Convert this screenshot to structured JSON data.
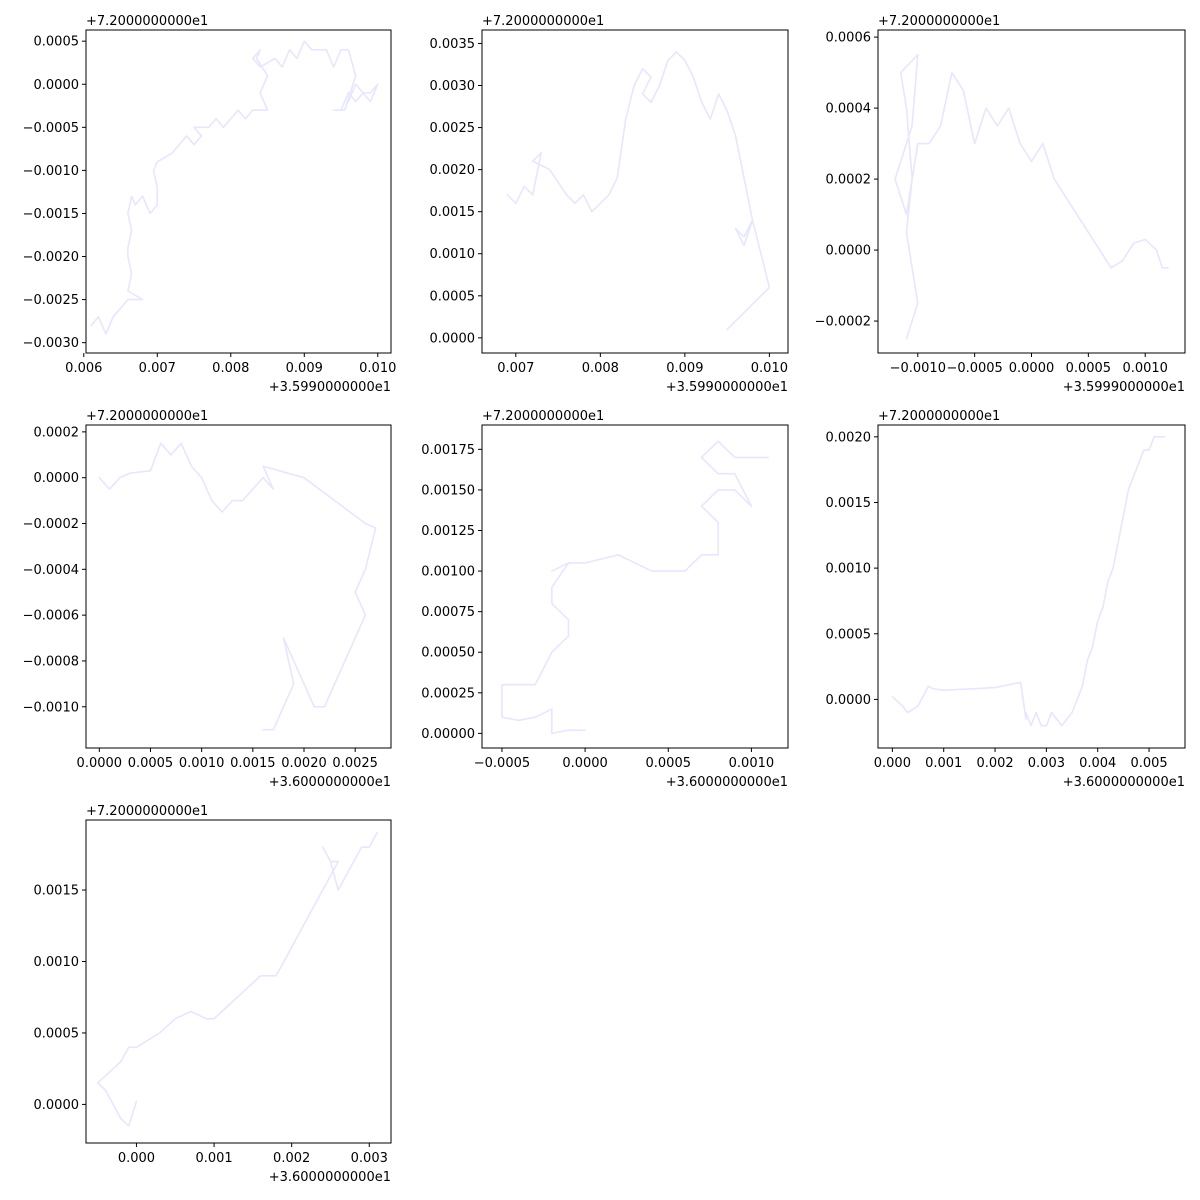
{
  "figure": {
    "background": "#ffffff",
    "line_color": "#e6e6ff"
  },
  "chart_data": [
    {
      "type": "line",
      "offset_y_label": "+7.2000000000e1",
      "offset_x_label": "+3.5990000000e1",
      "xlim": [
        0.00603,
        0.01018
      ],
      "ylim": [
        -0.00312,
        0.00063
      ],
      "x_ticks": [
        0.006,
        0.007,
        0.008,
        0.009,
        0.01
      ],
      "x_tick_labels": [
        "0.006",
        "0.007",
        "0.008",
        "0.009",
        "0.010"
      ],
      "y_ticks": [
        0.0005,
        0.0,
        -0.0005,
        -0.001,
        -0.0015,
        -0.002,
        -0.0025,
        -0.003
      ],
      "y_tick_labels": [
        "0.0005",
        "0.0000",
        "−0.0005",
        "−0.0010",
        "−0.0015",
        "−0.0020",
        "−0.0025",
        "−0.0030"
      ],
      "series": [
        {
          "x": [
            0.0061,
            0.0062,
            0.0063,
            0.0064,
            0.0066,
            0.0067,
            0.0068,
            0.0066,
            0.00665,
            0.0066,
            0.0066,
            0.00665,
            0.0066,
            0.00665,
            0.0067,
            0.0068,
            0.0069,
            0.007,
            0.007,
            0.00695,
            0.007,
            0.0072,
            0.0073,
            0.0074,
            0.0075,
            0.0076,
            0.0075,
            0.0077,
            0.0078,
            0.0079,
            0.008,
            0.0081,
            0.0082,
            0.0083,
            0.0085,
            0.0084,
            0.0085,
            0.00835,
            0.0084,
            0.0083,
            0.0084,
            0.0086,
            0.0087,
            0.0088,
            0.0089,
            0.009,
            0.0091,
            0.0093,
            0.0094,
            0.0095,
            0.0096,
            0.0097,
            0.00955,
            0.0094,
            0.0095,
            0.0096,
            0.0097,
            0.0098,
            0.0099,
            0.01,
            0.0099,
            0.0098,
            0.0097,
            0.0096
          ],
          "y": [
            -0.0028,
            -0.0027,
            -0.0029,
            -0.0027,
            -0.0025,
            -0.0025,
            -0.0025,
            -0.0024,
            -0.0022,
            -0.002,
            -0.0019,
            -0.0017,
            -0.0015,
            -0.0013,
            -0.0014,
            -0.0013,
            -0.0015,
            -0.0014,
            -0.0012,
            -0.001,
            -0.0009,
            -0.0008,
            -0.0007,
            -0.0006,
            -0.0007,
            -0.0006,
            -0.0005,
            -0.0005,
            -0.0004,
            -0.0005,
            -0.0004,
            -0.0003,
            -0.0004,
            -0.0003,
            -0.0003,
            -0.0001,
            0.0001,
            0.0003,
            0.0004,
            0.0003,
            0.0002,
            0.0003,
            0.0002,
            0.0004,
            0.0003,
            0.0005,
            0.0004,
            0.0004,
            0.0002,
            0.0004,
            0.0004,
            0.0001,
            -0.0003,
            -0.0003,
            -0.0003,
            -0.0001,
            -0.0002,
            -0.0001,
            -0.0001,
            0.0,
            -0.0002,
            -0.0001,
            0.0,
            -0.0002
          ]
        }
      ]
    },
    {
      "type": "line",
      "offset_y_label": "+7.2000000000e1",
      "offset_x_label": "+3.5990000000e1",
      "xlim": [
        0.0066,
        0.01022
      ],
      "ylim": [
        -0.00018,
        0.00366
      ],
      "x_ticks": [
        0.007,
        0.008,
        0.009,
        0.01
      ],
      "x_tick_labels": [
        "0.007",
        "0.008",
        "0.009",
        "0.010"
      ],
      "y_ticks": [
        0.0035,
        0.003,
        0.0025,
        0.002,
        0.0015,
        0.001,
        0.0005,
        0.0
      ],
      "y_tick_labels": [
        "0.0035",
        "0.0030",
        "0.0025",
        "0.0020",
        "0.0015",
        "0.0010",
        "0.0005",
        "0.0000"
      ],
      "series": [
        {
          "x": [
            0.0069,
            0.007,
            0.0071,
            0.0072,
            0.0073,
            0.0072,
            0.0074,
            0.0076,
            0.0077,
            0.0078,
            0.0079,
            0.008,
            0.0081,
            0.0082,
            0.0083,
            0.0084,
            0.0085,
            0.0086,
            0.0085,
            0.0086,
            0.0087,
            0.0088,
            0.0089,
            0.009,
            0.0091,
            0.0092,
            0.0093,
            0.0094,
            0.0095,
            0.0096,
            0.0097,
            0.0098,
            0.0097,
            0.0096,
            0.0097,
            0.0098,
            0.0099,
            0.01,
            0.0099,
            0.0098,
            0.0097,
            0.0096,
            0.0095
          ],
          "y": [
            0.0017,
            0.0016,
            0.0018,
            0.0017,
            0.0022,
            0.0021,
            0.002,
            0.0017,
            0.0016,
            0.0017,
            0.0015,
            0.0016,
            0.0017,
            0.0019,
            0.0026,
            0.003,
            0.0032,
            0.0031,
            0.0029,
            0.0028,
            0.003,
            0.0033,
            0.0034,
            0.0033,
            0.0031,
            0.0028,
            0.0026,
            0.0029,
            0.0027,
            0.0024,
            0.0019,
            0.0014,
            0.0012,
            0.0013,
            0.0011,
            0.0014,
            0.001,
            0.0006,
            0.0005,
            0.0004,
            0.0003,
            0.0002,
            0.0001
          ]
        }
      ]
    },
    {
      "type": "line",
      "offset_y_label": "+7.2000000000e1",
      "offset_x_label": "+3.5999000000e1",
      "xlim": [
        -0.00135,
        0.00135
      ],
      "ylim": [
        -0.00029,
        0.00062
      ],
      "x_ticks": [
        -0.001,
        -0.0005,
        0.0,
        0.0005,
        0.001
      ],
      "x_tick_labels": [
        "−0.0010",
        "−0.0005",
        "0.0000",
        "0.0005",
        "0.0010"
      ],
      "y_ticks": [
        0.0006,
        0.0004,
        0.0002,
        0.0,
        -0.0002
      ],
      "y_tick_labels": [
        "0.0006",
        "0.0004",
        "0.0002",
        "0.0000",
        "−0.0002"
      ],
      "series": [
        {
          "x": [
            -0.0011,
            -0.001,
            -0.0011,
            -0.00105,
            -0.0011,
            -0.00115,
            -0.001,
            -0.00105,
            -0.0011,
            -0.0012,
            -0.0011,
            -0.001,
            -0.0009,
            -0.0008,
            -0.0007,
            -0.0006,
            -0.0005,
            -0.0004,
            -0.0003,
            -0.0002,
            -0.0001,
            0.0,
            0.0001,
            0.0002,
            0.0003,
            0.0004,
            0.0005,
            0.0006,
            0.0007,
            0.0008,
            0.0009,
            0.001,
            0.0011,
            0.00115,
            0.0012
          ],
          "y": [
            -0.00025,
            -0.00015,
            5e-05,
            0.0002,
            0.0004,
            0.0005,
            0.00055,
            0.00035,
            0.0003,
            0.0002,
            0.0001,
            0.0003,
            0.0003,
            0.00035,
            0.0005,
            0.00045,
            0.0003,
            0.0004,
            0.00035,
            0.0004,
            0.0003,
            0.00025,
            0.0003,
            0.0002,
            0.00015,
            0.0001,
            5e-05,
            0.0,
            -5e-05,
            -3e-05,
            2e-05,
            3e-05,
            0.0,
            -5e-05,
            -5e-05
          ]
        }
      ]
    },
    {
      "type": "line",
      "offset_y_label": "+7.2000000000e1",
      "offset_x_label": "+3.6000000000e1",
      "xlim": [
        -0.00013,
        0.00285
      ],
      "ylim": [
        -0.00118,
        0.00023
      ],
      "x_ticks": [
        0.0,
        0.0005,
        0.001,
        0.0015,
        0.002,
        0.0025
      ],
      "x_tick_labels": [
        "0.0000",
        "0.0005",
        "0.0010",
        "0.0015",
        "0.0020",
        "0.0025"
      ],
      "y_ticks": [
        0.0002,
        0.0,
        -0.0002,
        -0.0004,
        -0.0006,
        -0.0008,
        -0.001
      ],
      "y_tick_labels": [
        "0.0002",
        "0.0000",
        "−0.0002",
        "−0.0004",
        "−0.0006",
        "−0.0008",
        "−0.0010"
      ],
      "series": [
        {
          "x": [
            0.0,
            0.0001,
            0.0002,
            0.0003,
            0.0005,
            0.0006,
            0.0007,
            0.0008,
            0.0009,
            0.001,
            0.0011,
            0.0012,
            0.0013,
            0.0014,
            0.0015,
            0.0016,
            0.0017,
            0.0016,
            0.002,
            0.0023,
            0.0026,
            0.0027,
            0.0026,
            0.0025,
            0.0026,
            0.0025,
            0.0024,
            0.0023,
            0.0022,
            0.0021,
            0.002,
            0.0019,
            0.0018,
            0.0019,
            0.0018,
            0.0017,
            0.0016
          ],
          "y": [
            0.0,
            -5e-05,
            0.0,
            2e-05,
            3e-05,
            0.00015,
            0.0001,
            0.00015,
            5e-05,
            0.0,
            -0.0001,
            -0.00015,
            -0.0001,
            -0.0001,
            -5e-05,
            0.0,
            -5e-05,
            5e-05,
            0.0,
            -0.0001,
            -0.0002,
            -0.00022,
            -0.0004,
            -0.0005,
            -0.0006,
            -0.0007,
            -0.0008,
            -0.0009,
            -0.001,
            -0.001,
            -0.0009,
            -0.0008,
            -0.0007,
            -0.0009,
            -0.001,
            -0.0011,
            -0.0011
          ]
        }
      ]
    },
    {
      "type": "line",
      "offset_y_label": "+7.2000000000e1",
      "offset_x_label": "+3.6000000000e1",
      "xlim": [
        -0.00062,
        0.00122
      ],
      "ylim": [
        -9e-05,
        0.0019
      ],
      "x_ticks": [
        -0.0005,
        0.0,
        0.0005,
        0.001
      ],
      "x_tick_labels": [
        "−0.0005",
        "0.0000",
        "0.0005",
        "0.0010"
      ],
      "y_ticks": [
        0.00175,
        0.0015,
        0.00125,
        0.001,
        0.00075,
        0.0005,
        0.00025,
        0.0
      ],
      "y_tick_labels": [
        "0.00175",
        "0.00150",
        "0.00125",
        "0.00100",
        "0.00075",
        "0.00050",
        "0.00025",
        "0.00000"
      ],
      "series": [
        {
          "x": [
            0.0,
            -0.0001,
            -0.0002,
            -0.0002,
            -0.0003,
            -0.0004,
            -0.0005,
            -0.0005,
            -0.0004,
            -0.0003,
            -0.0002,
            -0.0001,
            -0.0001,
            -0.0002,
            -0.0002,
            -0.0001,
            -0.0002,
            -0.0001,
            0.0,
            0.0002,
            0.0004,
            0.0006,
            0.0007,
            0.0008,
            0.0008,
            0.0007,
            0.0008,
            0.0009,
            0.001,
            0.0009,
            0.0008,
            0.0007,
            0.0008,
            0.0009,
            0.001,
            0.0011
          ],
          "y": [
            2e-05,
            2e-05,
            0.0,
            0.00015,
            0.0001,
            8e-05,
            0.0001,
            0.0003,
            0.0003,
            0.0003,
            0.0005,
            0.0006,
            0.0007,
            0.0008,
            0.0009,
            0.00105,
            0.001,
            0.00105,
            0.00105,
            0.0011,
            0.001,
            0.001,
            0.0011,
            0.0011,
            0.0013,
            0.0014,
            0.0015,
            0.0015,
            0.0014,
            0.0016,
            0.0016,
            0.0017,
            0.0018,
            0.0017,
            0.0017,
            0.0017
          ]
        }
      ]
    },
    {
      "type": "line",
      "offset_y_label": "+7.2000000000e1",
      "offset_x_label": "+3.6000000000e1",
      "xlim": [
        -0.00028,
        0.0057
      ],
      "ylim": [
        -0.00037,
        0.00209
      ],
      "x_ticks": [
        0.0,
        0.001,
        0.002,
        0.003,
        0.004,
        0.005
      ],
      "x_tick_labels": [
        "0.000",
        "0.001",
        "0.002",
        "0.003",
        "0.004",
        "0.005"
      ],
      "y_ticks": [
        0.002,
        0.0015,
        0.001,
        0.0005,
        0.0
      ],
      "y_tick_labels": [
        "0.0020",
        "0.0015",
        "0.0010",
        "0.0005",
        "0.0000"
      ],
      "series": [
        {
          "x": [
            0.0,
            0.0002,
            0.0003,
            0.0005,
            0.0007,
            0.0008,
            0.001,
            0.0015,
            0.002,
            0.0025,
            0.0026,
            0.0026,
            0.0027,
            0.0028,
            0.0029,
            0.003,
            0.0031,
            0.0033,
            0.0035,
            0.0036,
            0.0037,
            0.0038,
            0.0039,
            0.004,
            0.0041,
            0.0042,
            0.0043,
            0.0044,
            0.0045,
            0.0046,
            0.0047,
            0.0048,
            0.0049,
            0.005,
            0.0051,
            0.0052,
            0.0053
          ],
          "y": [
            2e-05,
            -5e-05,
            -0.0001,
            -5e-05,
            0.0001,
            8e-05,
            7e-05,
            8e-05,
            9e-05,
            0.00013,
            -0.00015,
            -0.0001,
            -0.0002,
            -0.0001,
            -0.0002,
            -0.0002,
            -0.0001,
            -0.0002,
            -0.0001,
            0.0,
            0.0001,
            0.0003,
            0.0004,
            0.0006,
            0.0007,
            0.0009,
            0.001,
            0.0012,
            0.0014,
            0.0016,
            0.0017,
            0.0018,
            0.0019,
            0.0019,
            0.002,
            0.002,
            0.002
          ]
        }
      ]
    },
    {
      "type": "line",
      "offset_y_label": "+7.2000000000e1",
      "offset_x_label": "+3.6000000000e1",
      "xlim": [
        -0.00065,
        0.00328
      ],
      "ylim": [
        -0.00027,
        0.00199
      ],
      "x_ticks": [
        0.0,
        0.001,
        0.002,
        0.003
      ],
      "x_tick_labels": [
        "0.000",
        "0.001",
        "0.002",
        "0.003"
      ],
      "y_ticks": [
        0.0015,
        0.001,
        0.0005,
        0.0
      ],
      "y_tick_labels": [
        "0.0015",
        "0.0010",
        "0.0005",
        "0.0000"
      ],
      "series": [
        {
          "x": [
            0.0,
            -0.0001,
            -0.0002,
            -0.0003,
            -0.0004,
            -0.0005,
            -0.0004,
            -0.0003,
            -0.0002,
            -0.0001,
            0.0,
            0.0003,
            0.0005,
            0.0007,
            0.0009,
            0.001,
            0.0012,
            0.0014,
            0.0015,
            0.0016,
            0.0018,
            0.0019,
            0.002,
            0.0021,
            0.0022,
            0.0023,
            0.0024,
            0.0025,
            0.0026,
            0.0025,
            0.0024,
            0.0025,
            0.0026,
            0.0027,
            0.0028,
            0.0029,
            0.003,
            0.0031
          ],
          "y": [
            2e-05,
            -0.00015,
            -0.0001,
            0.0,
            0.0001,
            0.00015,
            0.0002,
            0.00025,
            0.0003,
            0.0004,
            0.0004,
            0.0005,
            0.0006,
            0.00065,
            0.0006,
            0.0006,
            0.0007,
            0.0008,
            0.00085,
            0.0009,
            0.0009,
            0.001,
            0.0011,
            0.0012,
            0.0013,
            0.0014,
            0.0015,
            0.0016,
            0.0017,
            0.0017,
            0.0018,
            0.0017,
            0.0015,
            0.0016,
            0.0017,
            0.0018,
            0.0018,
            0.0019
          ]
        }
      ]
    }
  ]
}
